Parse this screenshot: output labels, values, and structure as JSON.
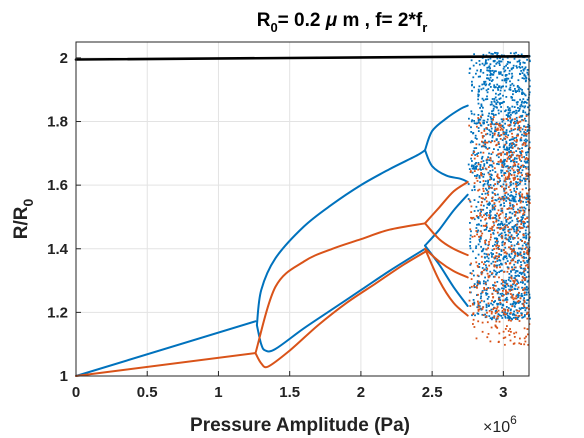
{
  "chart_data": {
    "type": "scatter",
    "title": {
      "main_part1": "R",
      "main_sub1": "0",
      "main_part2": "= 0.2 ",
      "mu": "μ",
      "main_part3": " m , f= 2*f",
      "main_sub2": "r"
    },
    "xlabel": "Pressure Amplitude (Pa)",
    "ylabel": {
      "main": "R/R",
      "sub": "0"
    },
    "x_multiplier": {
      "base": "×10",
      "exp": "6"
    },
    "xlim": [
      0,
      3.18
    ],
    "ylim": [
      1,
      2.05
    ],
    "x_ticks": [
      0,
      0.5,
      1,
      1.5,
      2,
      2.5,
      3
    ],
    "x_tick_labels": [
      "0",
      "0.5",
      "1",
      "1.5",
      "2",
      "2.5",
      "3"
    ],
    "y_ticks": [
      1,
      1.2,
      1.4,
      1.6,
      1.8,
      2
    ],
    "y_tick_labels": [
      "1",
      "1.2",
      "1.4",
      "1.6",
      "1.8",
      "2"
    ],
    "grid": true,
    "colors": {
      "blue": "#0072BD",
      "orange": "#D95319",
      "black": "#000000"
    },
    "series": [
      {
        "color": "black",
        "style": "line",
        "x": [
          0,
          3.18
        ],
        "y": [
          1.995,
          2.005
        ]
      },
      {
        "color": "blue",
        "style": "curve",
        "x": [
          0,
          1.26
        ],
        "y": [
          1.0,
          1.172
        ]
      },
      {
        "color": "orange",
        "style": "curve",
        "x": [
          0,
          1.26
        ],
        "y": [
          1.0,
          1.072
        ]
      },
      {
        "color": "blue",
        "style": "curve",
        "x": [
          1.27,
          1.3,
          1.4,
          1.6,
          1.8,
          2.0,
          2.2,
          2.4,
          2.45
        ],
        "y": [
          1.16,
          1.27,
          1.37,
          1.47,
          1.54,
          1.6,
          1.65,
          1.695,
          1.71
        ]
      },
      {
        "color": "blue",
        "style": "curve",
        "x": [
          1.27,
          1.3,
          1.33,
          1.4,
          1.6,
          1.8,
          2.0,
          2.2,
          2.45
        ],
        "y": [
          1.16,
          1.1,
          1.08,
          1.085,
          1.15,
          1.21,
          1.27,
          1.33,
          1.4
        ]
      },
      {
        "color": "orange",
        "style": "curve",
        "x": [
          1.26,
          1.4,
          1.6,
          1.8,
          2.0,
          2.2,
          2.45
        ],
        "y": [
          1.072,
          1.28,
          1.36,
          1.4,
          1.43,
          1.46,
          1.48
        ]
      },
      {
        "color": "orange",
        "style": "curve",
        "x": [
          1.26,
          1.3,
          1.35,
          1.5,
          1.7,
          1.9,
          2.1,
          2.3,
          2.45
        ],
        "y": [
          1.072,
          1.04,
          1.03,
          1.08,
          1.16,
          1.23,
          1.29,
          1.35,
          1.39
        ]
      },
      {
        "color": "blue",
        "style": "curve",
        "x": [
          2.45,
          2.5,
          2.6,
          2.7,
          2.75
        ],
        "y": [
          1.71,
          1.77,
          1.81,
          1.84,
          1.85
        ]
      },
      {
        "color": "blue",
        "style": "curve",
        "x": [
          2.45,
          2.5,
          2.6,
          2.7,
          2.75
        ],
        "y": [
          1.71,
          1.66,
          1.63,
          1.62,
          1.61
        ]
      },
      {
        "color": "blue",
        "style": "curve",
        "x": [
          2.45,
          2.55,
          2.65,
          2.75
        ],
        "y": [
          1.41,
          1.46,
          1.52,
          1.57
        ]
      },
      {
        "color": "blue",
        "style": "curve",
        "x": [
          2.45,
          2.55,
          2.65,
          2.75
        ],
        "y": [
          1.41,
          1.35,
          1.28,
          1.22
        ]
      },
      {
        "color": "orange",
        "style": "curve",
        "x": [
          2.45,
          2.55,
          2.65,
          2.75
        ],
        "y": [
          1.48,
          1.53,
          1.58,
          1.61
        ]
      },
      {
        "color": "orange",
        "style": "curve",
        "x": [
          2.45,
          2.55,
          2.65,
          2.75
        ],
        "y": [
          1.48,
          1.43,
          1.4,
          1.38
        ]
      },
      {
        "color": "orange",
        "style": "curve",
        "x": [
          2.45,
          2.55,
          2.65,
          2.75
        ],
        "y": [
          1.4,
          1.36,
          1.33,
          1.31
        ]
      },
      {
        "color": "orange",
        "style": "curve",
        "x": [
          2.45,
          2.55,
          2.65,
          2.75
        ],
        "y": [
          1.4,
          1.3,
          1.23,
          1.19
        ]
      }
    ],
    "chaotic_bands": [
      {
        "color": "blue",
        "x_range": [
          2.75,
          3.18
        ],
        "y_range": [
          1.18,
          2.02
        ],
        "count": 1600
      },
      {
        "color": "orange",
        "x_range": [
          2.75,
          3.18
        ],
        "y_range": [
          1.1,
          1.82
        ],
        "count": 650
      }
    ]
  }
}
